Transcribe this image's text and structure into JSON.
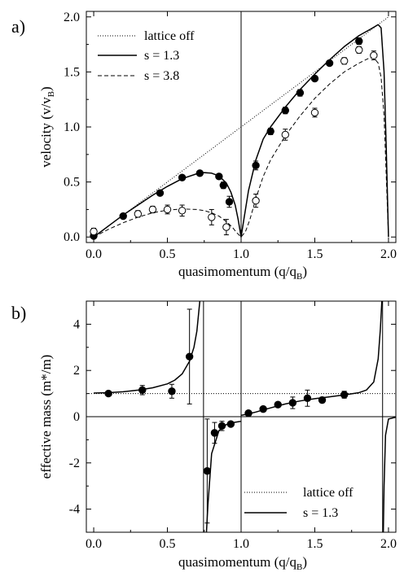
{
  "chart_data": [
    {
      "panel_label": "a)",
      "type": "line",
      "xlabel_main": "quasimomentum (q/q",
      "xlabel_sub": "B",
      "xlabel_close": ")",
      "ylabel_main": "velocity (v/v",
      "ylabel_sub": "B",
      "ylabel_close": ")",
      "xlim": [
        -0.05,
        2.05
      ],
      "ylim": [
        -0.05,
        2.05
      ],
      "xticks": [
        0.0,
        0.5,
        1.0,
        1.5,
        2.0
      ],
      "xticklabels": [
        "0.0",
        "0.5",
        "1.0",
        "1.5",
        "2.0"
      ],
      "yticks": [
        0.0,
        0.5,
        1.0,
        1.5,
        2.0
      ],
      "yticklabels": [
        "0.0",
        "0.5",
        "1.0",
        "1.5",
        "2.0"
      ],
      "vlines": [
        1.0
      ],
      "legend_position": "top-left",
      "legend": [
        {
          "label": "lattice off",
          "style": "dotted"
        },
        {
          "label": "s = 1.3",
          "style": "solid"
        },
        {
          "label": "s = 3.8",
          "style": "dashed"
        }
      ],
      "curves": [
        {
          "label": "lattice off",
          "style": "dotted",
          "points": [
            [
              0,
              0
            ],
            [
              2.0,
              2.0
            ]
          ]
        },
        {
          "label": "s = 1.3",
          "style": "solid",
          "points": [
            [
              0,
              0
            ],
            [
              0.1,
              0.1
            ],
            [
              0.2,
              0.2
            ],
            [
              0.3,
              0.29
            ],
            [
              0.4,
              0.38
            ],
            [
              0.5,
              0.46
            ],
            [
              0.6,
              0.53
            ],
            [
              0.7,
              0.575
            ],
            [
              0.75,
              0.585
            ],
            [
              0.8,
              0.58
            ],
            [
              0.85,
              0.555
            ],
            [
              0.9,
              0.49
            ],
            [
              0.93,
              0.41
            ],
            [
              0.96,
              0.29
            ],
            [
              0.98,
              0.16
            ],
            [
              1.0,
              0.0
            ],
            [
              1.02,
              0.17
            ],
            [
              1.05,
              0.42
            ],
            [
              1.1,
              0.7
            ],
            [
              1.15,
              0.89
            ],
            [
              1.2,
              1.0
            ],
            [
              1.3,
              1.18
            ],
            [
              1.4,
              1.34
            ],
            [
              1.5,
              1.48
            ],
            [
              1.6,
              1.61
            ],
            [
              1.7,
              1.73
            ],
            [
              1.8,
              1.83
            ],
            [
              1.88,
              1.89
            ],
            [
              1.93,
              1.93
            ],
            [
              1.95,
              1.9
            ],
            [
              1.97,
              1.5
            ],
            [
              1.985,
              0.8
            ],
            [
              2.0,
              0.0
            ]
          ]
        },
        {
          "label": "s = 3.8",
          "style": "dashed",
          "points": [
            [
              0,
              0
            ],
            [
              0.1,
              0.07
            ],
            [
              0.2,
              0.13
            ],
            [
              0.3,
              0.18
            ],
            [
              0.4,
              0.22
            ],
            [
              0.5,
              0.245
            ],
            [
              0.6,
              0.255
            ],
            [
              0.7,
              0.25
            ],
            [
              0.75,
              0.24
            ],
            [
              0.8,
              0.22
            ],
            [
              0.85,
              0.19
            ],
            [
              0.9,
              0.14
            ],
            [
              0.94,
              0.09
            ],
            [
              0.97,
              0.04
            ],
            [
              1.0,
              0.0
            ],
            [
              1.03,
              0.05
            ],
            [
              1.06,
              0.16
            ],
            [
              1.1,
              0.35
            ],
            [
              1.15,
              0.55
            ],
            [
              1.2,
              0.7
            ],
            [
              1.3,
              0.92
            ],
            [
              1.4,
              1.1
            ],
            [
              1.5,
              1.26
            ],
            [
              1.6,
              1.39
            ],
            [
              1.7,
              1.5
            ],
            [
              1.8,
              1.58
            ],
            [
              1.86,
              1.62
            ],
            [
              1.9,
              1.63
            ],
            [
              1.93,
              1.58
            ],
            [
              1.95,
              1.45
            ],
            [
              1.97,
              1.1
            ],
            [
              1.985,
              0.55
            ],
            [
              2.0,
              0.0
            ]
          ]
        }
      ],
      "data_series": [
        {
          "label": "s = 1.3",
          "marker": "filled",
          "points": [
            {
              "x": 0.0,
              "y": 0.01,
              "err": 0.02
            },
            {
              "x": 0.2,
              "y": 0.19,
              "err": 0.02
            },
            {
              "x": 0.45,
              "y": 0.4,
              "err": 0.02
            },
            {
              "x": 0.6,
              "y": 0.54,
              "err": 0.02
            },
            {
              "x": 0.72,
              "y": 0.58,
              "err": 0.02
            },
            {
              "x": 0.85,
              "y": 0.55,
              "err": 0.02
            },
            {
              "x": 0.88,
              "y": 0.47,
              "err": 0.03
            },
            {
              "x": 0.92,
              "y": 0.32,
              "err": 0.05
            },
            {
              "x": 1.1,
              "y": 0.65,
              "err": 0.04
            },
            {
              "x": 1.2,
              "y": 0.96,
              "err": 0.03
            },
            {
              "x": 1.3,
              "y": 1.15,
              "err": 0.03
            },
            {
              "x": 1.4,
              "y": 1.31,
              "err": 0.03
            },
            {
              "x": 1.5,
              "y": 1.44,
              "err": 0.02
            },
            {
              "x": 1.6,
              "y": 1.58,
              "err": 0.02
            },
            {
              "x": 1.8,
              "y": 1.78,
              "err": 0.03
            }
          ]
        },
        {
          "label": "s = 3.8",
          "marker": "open",
          "points": [
            {
              "x": 0.0,
              "y": 0.05,
              "err": 0.03
            },
            {
              "x": 0.3,
              "y": 0.21,
              "err": 0.03
            },
            {
              "x": 0.4,
              "y": 0.25,
              "err": 0.03
            },
            {
              "x": 0.5,
              "y": 0.25,
              "err": 0.04
            },
            {
              "x": 0.6,
              "y": 0.24,
              "err": 0.05
            },
            {
              "x": 0.8,
              "y": 0.18,
              "err": 0.07
            },
            {
              "x": 0.9,
              "y": 0.09,
              "err": 0.07
            },
            {
              "x": 1.1,
              "y": 0.33,
              "err": 0.06
            },
            {
              "x": 1.3,
              "y": 0.93,
              "err": 0.05
            },
            {
              "x": 1.5,
              "y": 1.13,
              "err": 0.04
            },
            {
              "x": 1.7,
              "y": 1.6,
              "err": 0.03
            },
            {
              "x": 1.8,
              "y": 1.7,
              "err": 0.03
            },
            {
              "x": 1.9,
              "y": 1.65,
              "err": 0.04
            }
          ]
        }
      ]
    },
    {
      "panel_label": "b)",
      "type": "line",
      "xlabel_main": "quasimomentum (q/q",
      "xlabel_sub": "B",
      "xlabel_close": ")",
      "ylabel_main": "effective mass (m*/m)",
      "ylabel_sub": "",
      "ylabel_close": "",
      "xlim": [
        -0.05,
        2.05
      ],
      "ylim": [
        -5,
        5
      ],
      "xticks": [
        0.0,
        0.5,
        1.0,
        1.5,
        2.0
      ],
      "xticklabels": [
        "0.0",
        "0.5",
        "1.0",
        "1.5",
        "2.0"
      ],
      "yticks": [
        -4,
        -2,
        0,
        2,
        4
      ],
      "yticklabels": [
        "-4",
        "-2",
        "0",
        "2",
        "4"
      ],
      "vlines": [
        0.745,
        1.0,
        1.96
      ],
      "hlines": [
        0
      ],
      "legend_position": "bottom-right",
      "legend": [
        {
          "label": "lattice off",
          "style": "dotted"
        },
        {
          "label": "s = 1.3",
          "style": "solid"
        }
      ],
      "curves": [
        {
          "label": "lattice off",
          "style": "dotted",
          "points": [
            [
              -0.05,
              1.0
            ],
            [
              2.05,
              1.0
            ]
          ]
        },
        {
          "label": "s = 1.3",
          "style": "solid",
          "points": [
            [
              0.0,
              1.02
            ],
            [
              0.1,
              1.04
            ],
            [
              0.2,
              1.08
            ],
            [
              0.3,
              1.15
            ],
            [
              0.4,
              1.25
            ],
            [
              0.5,
              1.42
            ],
            [
              0.55,
              1.58
            ],
            [
              0.6,
              1.85
            ],
            [
              0.65,
              2.4
            ],
            [
              0.68,
              3.0
            ],
            [
              0.7,
              3.7
            ],
            [
              0.72,
              5.0
            ]
          ]
        },
        {
          "label": "s = 1.3",
          "style": "solid",
          "points": [
            [
              0.765,
              -5.0
            ],
            [
              0.775,
              -3.8
            ],
            [
              0.8,
              -1.6
            ],
            [
              0.85,
              -0.6
            ],
            [
              0.9,
              -0.34
            ],
            [
              0.95,
              -0.25
            ],
            [
              0.98,
              -0.22
            ],
            [
              1.0,
              -0.2
            ]
          ]
        },
        {
          "label": "s = 1.3",
          "style": "solid",
          "points": [
            [
              1.0,
              0.06
            ],
            [
              1.05,
              0.12
            ],
            [
              1.1,
              0.2
            ],
            [
              1.2,
              0.38
            ],
            [
              1.3,
              0.55
            ],
            [
              1.4,
              0.68
            ],
            [
              1.5,
              0.78
            ],
            [
              1.6,
              0.86
            ],
            [
              1.7,
              0.94
            ],
            [
              1.8,
              1.04
            ],
            [
              1.85,
              1.15
            ],
            [
              1.9,
              1.5
            ],
            [
              1.93,
              2.5
            ],
            [
              1.945,
              3.8
            ],
            [
              1.955,
              5.0
            ]
          ]
        },
        {
          "label": "s = 1.3",
          "style": "solid",
          "points": [
            [
              1.965,
              -5.0
            ],
            [
              1.97,
              -3.0
            ],
            [
              1.98,
              -0.8
            ],
            [
              2.0,
              -0.1
            ],
            [
              2.05,
              -0.02
            ]
          ]
        }
      ],
      "data_series": [
        {
          "label": "s = 1.3",
          "marker": "filled",
          "points": [
            {
              "x": 0.1,
              "y": 1.0,
              "err": 0.08
            },
            {
              "x": 0.33,
              "y": 1.15,
              "err": 0.2
            },
            {
              "x": 0.53,
              "y": 1.1,
              "err": 0.3
            },
            {
              "x": 0.65,
              "y": 2.6,
              "err": 2.05
            },
            {
              "x": 0.77,
              "y": -2.35,
              "err": 2.25
            },
            {
              "x": 0.82,
              "y": -0.7,
              "err": 0.45
            },
            {
              "x": 0.87,
              "y": -0.4,
              "err": 0.2
            },
            {
              "x": 0.93,
              "y": -0.32,
              "err": 0.1
            },
            {
              "x": 1.05,
              "y": 0.15,
              "err": 0.05
            },
            {
              "x": 1.15,
              "y": 0.33,
              "err": 0.08
            },
            {
              "x": 1.25,
              "y": 0.52,
              "err": 0.1
            },
            {
              "x": 1.35,
              "y": 0.6,
              "err": 0.25
            },
            {
              "x": 1.45,
              "y": 0.8,
              "err": 0.35
            },
            {
              "x": 1.55,
              "y": 0.72,
              "err": 0.12
            },
            {
              "x": 1.7,
              "y": 0.95,
              "err": 0.15
            }
          ]
        }
      ]
    }
  ]
}
